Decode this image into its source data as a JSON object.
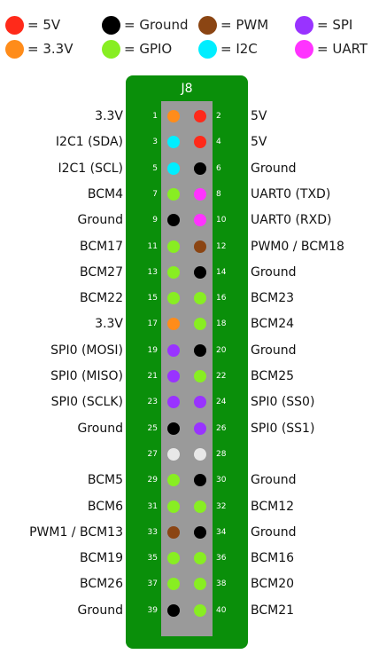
{
  "legend": [
    {
      "label": "= 5V",
      "color": "#ff2a1a"
    },
    {
      "label": "= Ground",
      "color": "#000000"
    },
    {
      "label": "= PWM",
      "color": "#8b4513"
    },
    {
      "label": "= SPI",
      "color": "#9933ff"
    },
    {
      "label": "= 3.3V",
      "color": "#ff8c1a"
    },
    {
      "label": "= GPIO",
      "color": "#88ee22"
    },
    {
      "label": "= I2C",
      "color": "#00eeff"
    },
    {
      "label": "= UART",
      "color": "#ff33ff"
    }
  ],
  "header": {
    "title": "J8"
  },
  "colors": {
    "nc": "#e8e8e8"
  },
  "pins": [
    {
      "left": {
        "num": "1",
        "label": "3.3V",
        "color": "#ff8c1a"
      },
      "right": {
        "num": "2",
        "label": "5V",
        "color": "#ff2a1a"
      }
    },
    {
      "left": {
        "num": "3",
        "label": "I2C1 (SDA)",
        "color": "#00eeff"
      },
      "right": {
        "num": "4",
        "label": "5V",
        "color": "#ff2a1a"
      }
    },
    {
      "left": {
        "num": "5",
        "label": "I2C1 (SCL)",
        "color": "#00eeff"
      },
      "right": {
        "num": "6",
        "label": "Ground",
        "color": "#000000"
      }
    },
    {
      "left": {
        "num": "7",
        "label": "BCM4",
        "color": "#88ee22"
      },
      "right": {
        "num": "8",
        "label": "UART0 (TXD)",
        "color": "#ff33ff"
      }
    },
    {
      "left": {
        "num": "9",
        "label": "Ground",
        "color": "#000000"
      },
      "right": {
        "num": "10",
        "label": "UART0 (RXD)",
        "color": "#ff33ff"
      }
    },
    {
      "left": {
        "num": "11",
        "label": "BCM17",
        "color": "#88ee22"
      },
      "right": {
        "num": "12",
        "label": "PWM0 / BCM18",
        "color": "#8b4513"
      }
    },
    {
      "left": {
        "num": "13",
        "label": "BCM27",
        "color": "#88ee22"
      },
      "right": {
        "num": "14",
        "label": "Ground",
        "color": "#000000"
      }
    },
    {
      "left": {
        "num": "15",
        "label": "BCM22",
        "color": "#88ee22"
      },
      "right": {
        "num": "16",
        "label": "BCM23",
        "color": "#88ee22"
      }
    },
    {
      "left": {
        "num": "17",
        "label": "3.3V",
        "color": "#ff8c1a"
      },
      "right": {
        "num": "18",
        "label": "BCM24",
        "color": "#88ee22"
      }
    },
    {
      "left": {
        "num": "19",
        "label": "SPI0 (MOSI)",
        "color": "#9933ff"
      },
      "right": {
        "num": "20",
        "label": "Ground",
        "color": "#000000"
      }
    },
    {
      "left": {
        "num": "21",
        "label": "SPI0 (MISO)",
        "color": "#9933ff"
      },
      "right": {
        "num": "22",
        "label": "BCM25",
        "color": "#88ee22"
      }
    },
    {
      "left": {
        "num": "23",
        "label": "SPI0 (SCLK)",
        "color": "#9933ff"
      },
      "right": {
        "num": "24",
        "label": "SPI0 (SS0)",
        "color": "#9933ff"
      }
    },
    {
      "left": {
        "num": "25",
        "label": "Ground",
        "color": "#000000"
      },
      "right": {
        "num": "26",
        "label": "SPI0 (SS1)",
        "color": "#9933ff"
      }
    },
    {
      "left": {
        "num": "27",
        "label": "",
        "color": "#e8e8e8"
      },
      "right": {
        "num": "28",
        "label": "",
        "color": "#e8e8e8"
      }
    },
    {
      "left": {
        "num": "29",
        "label": "BCM5",
        "color": "#88ee22"
      },
      "right": {
        "num": "30",
        "label": "Ground",
        "color": "#000000"
      }
    },
    {
      "left": {
        "num": "31",
        "label": "BCM6",
        "color": "#88ee22"
      },
      "right": {
        "num": "32",
        "label": "BCM12",
        "color": "#88ee22"
      }
    },
    {
      "left": {
        "num": "33",
        "label": "PWM1 / BCM13",
        "color": "#8b4513"
      },
      "right": {
        "num": "34",
        "label": "Ground",
        "color": "#000000"
      }
    },
    {
      "left": {
        "num": "35",
        "label": "BCM19",
        "color": "#88ee22"
      },
      "right": {
        "num": "36",
        "label": "BCM16",
        "color": "#88ee22"
      }
    },
    {
      "left": {
        "num": "37",
        "label": "BCM26",
        "color": "#88ee22"
      },
      "right": {
        "num": "38",
        "label": "BCM20",
        "color": "#88ee22"
      }
    },
    {
      "left": {
        "num": "39",
        "label": "Ground",
        "color": "#000000"
      },
      "right": {
        "num": "40",
        "label": "BCM21",
        "color": "#88ee22"
      }
    }
  ]
}
